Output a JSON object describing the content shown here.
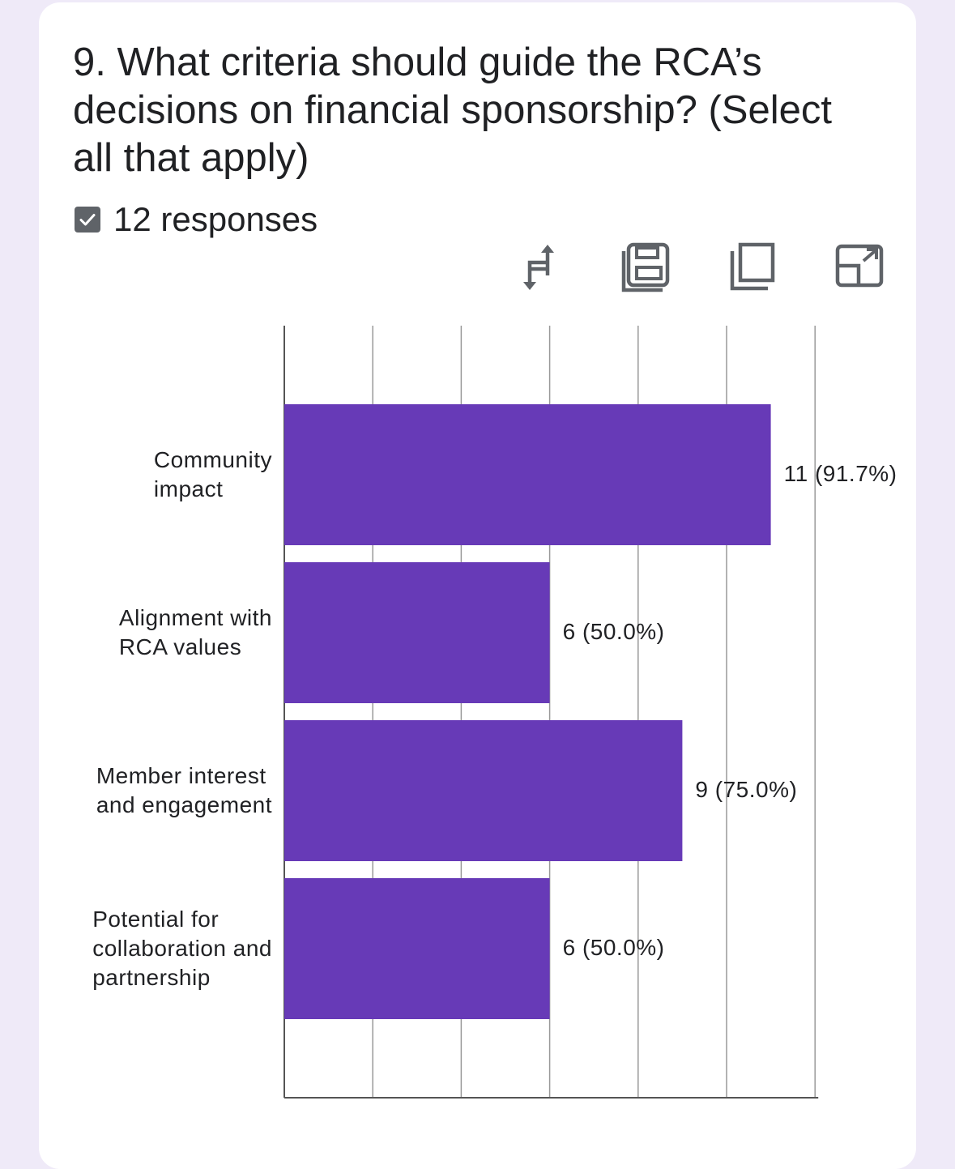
{
  "question": {
    "title": "9. What criteria should guide the RCA’s decisions on financial sponsorship? (Select all that apply)",
    "responses_label": "12 responses"
  },
  "toolbar": {
    "icons": [
      "switch-axes-icon",
      "save-icon",
      "copy-icon",
      "expand-icon"
    ]
  },
  "colors": {
    "bar": "#673ab7",
    "grid": "#999999",
    "background": "#efeaf8",
    "card": "#ffffff"
  },
  "chart_data": {
    "type": "bar",
    "orientation": "horizontal",
    "categories": [
      "Community impact",
      "Alignment with RCA values",
      "Member interest and engagement",
      "Potential for collaboration and partnership"
    ],
    "values": [
      11,
      6,
      9,
      6
    ],
    "value_labels": [
      "11 (91.7%)",
      "6 (50.0%)",
      "9 (75.0%)",
      "6 (50.0%)"
    ],
    "xlim": [
      0,
      12
    ],
    "grid": true,
    "title": "",
    "xlabel": "",
    "ylabel": ""
  },
  "category_lines": [
    [
      "Community",
      "impact"
    ],
    [
      "Alignment with",
      "RCA values"
    ],
    [
      "Member interest",
      "and engagement"
    ],
    [
      "Potential for",
      "collaboration and",
      "partnership"
    ]
  ]
}
